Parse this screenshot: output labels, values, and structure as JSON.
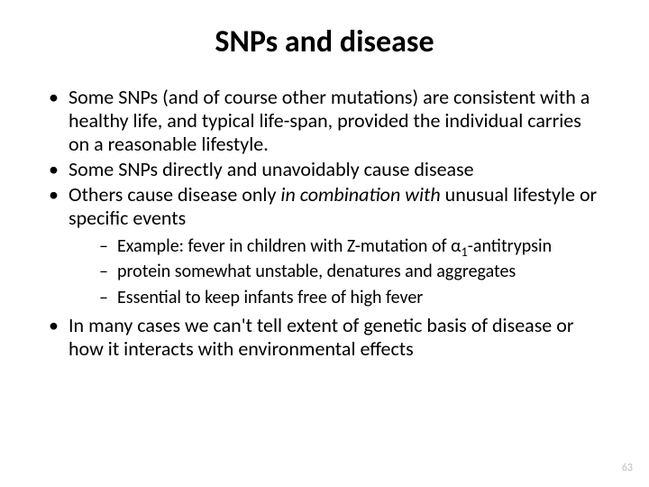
{
  "title": {
    "text": "SNPs and disease",
    "fontsize": 34
  },
  "body_fontsize": 22,
  "sub_fontsize": 20,
  "bullets": {
    "b1": "Some SNPs (and of course other mutations) are consistent with a healthy life, and typical life-span, provided the individual carries on a reasonable lifestyle.",
    "b2": "Some SNPs directly and unavoidably cause disease",
    "b3_pre": "Others cause disease only ",
    "b3_italic": "in combination with",
    "b3_post": " unusual lifestyle or specific events",
    "b3_sub1_pre": "Example: fever in children with Z-mutation of α",
    "b3_sub1_sub": "1",
    "b3_sub1_post": "-antitrypsin",
    "b3_sub2": "protein somewhat unstable, denatures and aggregates",
    "b3_sub3": "Essential to keep infants free of high fever",
    "b4": "In many cases we can't tell extent of genetic basis of disease or how it interacts with environmental effects"
  },
  "page_number": "63",
  "page_number_fontsize": 12,
  "colors": {
    "text": "#000000",
    "background": "#ffffff",
    "page_number": "#bfbfbf"
  }
}
